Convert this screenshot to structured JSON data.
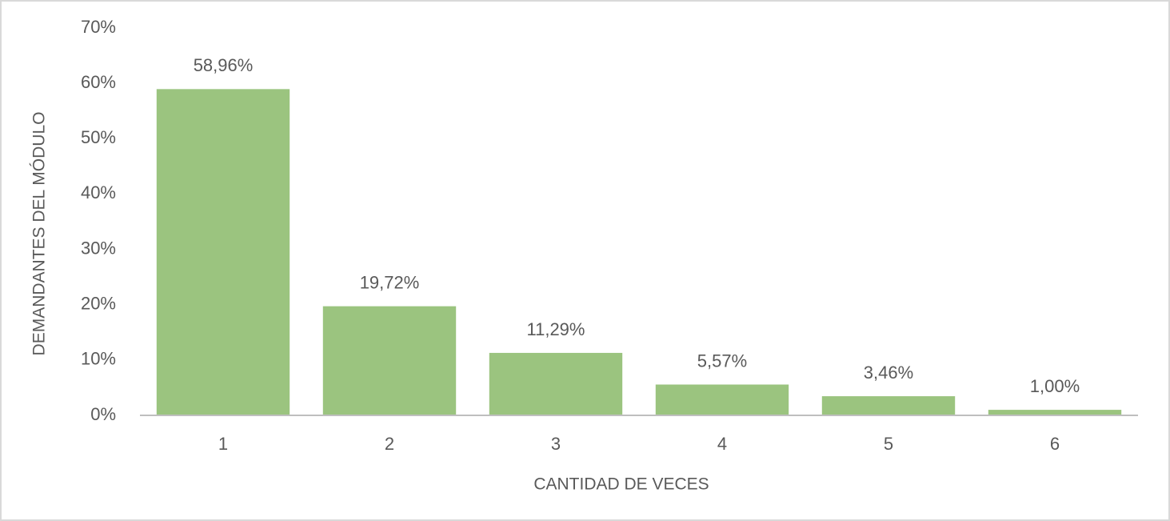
{
  "chart_data": {
    "type": "bar",
    "x_label": "CANTIDAD DE VECES",
    "y_label": "DEMANDANTES DEL MÓDULO",
    "categories": [
      "1",
      "2",
      "3",
      "4",
      "5",
      "6"
    ],
    "values": [
      58.96,
      19.72,
      11.29,
      5.57,
      3.46,
      1.0
    ],
    "value_labels": [
      "58,96%",
      "19,72%",
      "11,29%",
      "5,57%",
      "3,46%",
      "1,00%"
    ],
    "color": "#9bc47f",
    "ylim": [
      0,
      70
    ],
    "yticks": [
      {
        "value": 0,
        "label": "0%"
      },
      {
        "value": 10,
        "label": "10%"
      },
      {
        "value": 20,
        "label": "20%"
      },
      {
        "value": 30,
        "label": "30%"
      },
      {
        "value": 40,
        "label": "40%"
      },
      {
        "value": 50,
        "label": "50%"
      },
      {
        "value": 60,
        "label": "60%"
      },
      {
        "value": 70,
        "label": "70%"
      }
    ],
    "grid": false
  }
}
